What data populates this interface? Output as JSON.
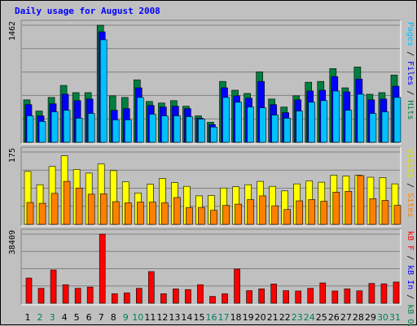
{
  "chart_data": {
    "title": "Daily usage for August 2008",
    "categories": [
      "1",
      "2",
      "3",
      "4",
      "5",
      "6",
      "7",
      "8",
      "9",
      "10",
      "11",
      "12",
      "13",
      "14",
      "15",
      "16",
      "17",
      "18",
      "19",
      "20",
      "21",
      "22",
      "23",
      "24",
      "25",
      "26",
      "27",
      "28",
      "29",
      "30",
      "31"
    ],
    "weekend_days": [
      "2",
      "3",
      "9",
      "10",
      "16",
      "17",
      "23",
      "24",
      "30",
      "31"
    ],
    "colors": {
      "hits": "#008040",
      "files": "#0000ff",
      "pages": "#00c0ff",
      "visits": "#ffff00",
      "sites": "#ff8000",
      "kb_f": "#ff0000",
      "kb_in": "#0000ff",
      "kb_out": "#008040",
      "weekday_label": "#000000",
      "weekend_label": "#00805c",
      "title": "#0000ff"
    },
    "panels": [
      {
        "type": "bar",
        "y_max_label": "1462",
        "ylim": [
          0,
          1462
        ],
        "legend": [
          "Pages",
          "/",
          "Files",
          "/",
          "Hits"
        ],
        "legend_colors": [
          "#00c0ff",
          "#000000",
          "#0000ff",
          "#000000",
          "#008040"
        ],
        "series": [
          {
            "name": "Hits",
            "values": [
              530,
              390,
              560,
              710,
              620,
              620,
              1462,
              580,
              560,
              780,
              510,
              490,
              520,
              450,
              330,
              250,
              760,
              650,
              610,
              880,
              540,
              440,
              580,
              750,
              760,
              920,
              680,
              940,
              600,
              620,
              840
            ]
          },
          {
            "name": "Files",
            "values": [
              470,
              330,
              480,
              600,
              520,
              540,
              1380,
              400,
              420,
              680,
              460,
              440,
              450,
              420,
              300,
              220,
              680,
              580,
              550,
              760,
              470,
              370,
              530,
              640,
              650,
              820,
              630,
              790,
              530,
              540,
              700
            ]
          },
          {
            "name": "Pages",
            "values": [
              330,
              260,
              380,
              400,
              300,
              360,
              1280,
              280,
              280,
              560,
              350,
              330,
              330,
              320,
              290,
              190,
              560,
              500,
              440,
              430,
              340,
              300,
              390,
              500,
              520,
              640,
              400,
              600,
              360,
              380,
              560
            ]
          }
        ]
      },
      {
        "type": "bar",
        "y_max_label": "175",
        "ylim": [
          0,
          175
        ],
        "legend": [
          "Visits",
          "/",
          "Sites"
        ],
        "legend_colors": [
          "#e0e000",
          "#000000",
          "#ff8000"
        ],
        "series": [
          {
            "name": "Visits",
            "values": [
              128,
              96,
              140,
              166,
              133,
              124,
              146,
              130,
              103,
              76,
              97,
              111,
              101,
              92,
              69,
              70,
              88,
              91,
              96,
              104,
              92,
              81,
              98,
              105,
              102,
              119,
              117,
              119,
              114,
              113,
              98
            ]
          },
          {
            "name": "Sites",
            "values": [
              53,
              51,
              75,
              104,
              88,
              73,
              74,
              55,
              52,
              54,
              54,
              52,
              65,
              41,
              41,
              34,
              46,
              49,
              60,
              69,
              45,
              36,
              57,
              60,
              56,
              78,
              80,
              118,
              62,
              58,
              46
            ]
          }
        ]
      },
      {
        "type": "bar",
        "y_max_label": "38409",
        "ylim": [
          0,
          38409
        ],
        "legend": [
          "kB F",
          "/",
          "kB In",
          "/",
          "kB Out"
        ],
        "legend_colors": [
          "#ff0000",
          "#000000",
          "#0000ff",
          "#000000",
          "#008040"
        ],
        "series": [
          {
            "name": "kB F",
            "values": [
              14000,
              8300,
              18500,
              10300,
              8300,
              9000,
              38409,
              5300,
              5800,
              8300,
              17600,
              5300,
              8000,
              7600,
              10300,
              3800,
              5300,
              19000,
              7000,
              8000,
              10700,
              7000,
              6800,
              8300,
              11300,
              6800,
              8000,
              6900,
              11000,
              10800,
              11800
            ]
          }
        ]
      }
    ]
  }
}
